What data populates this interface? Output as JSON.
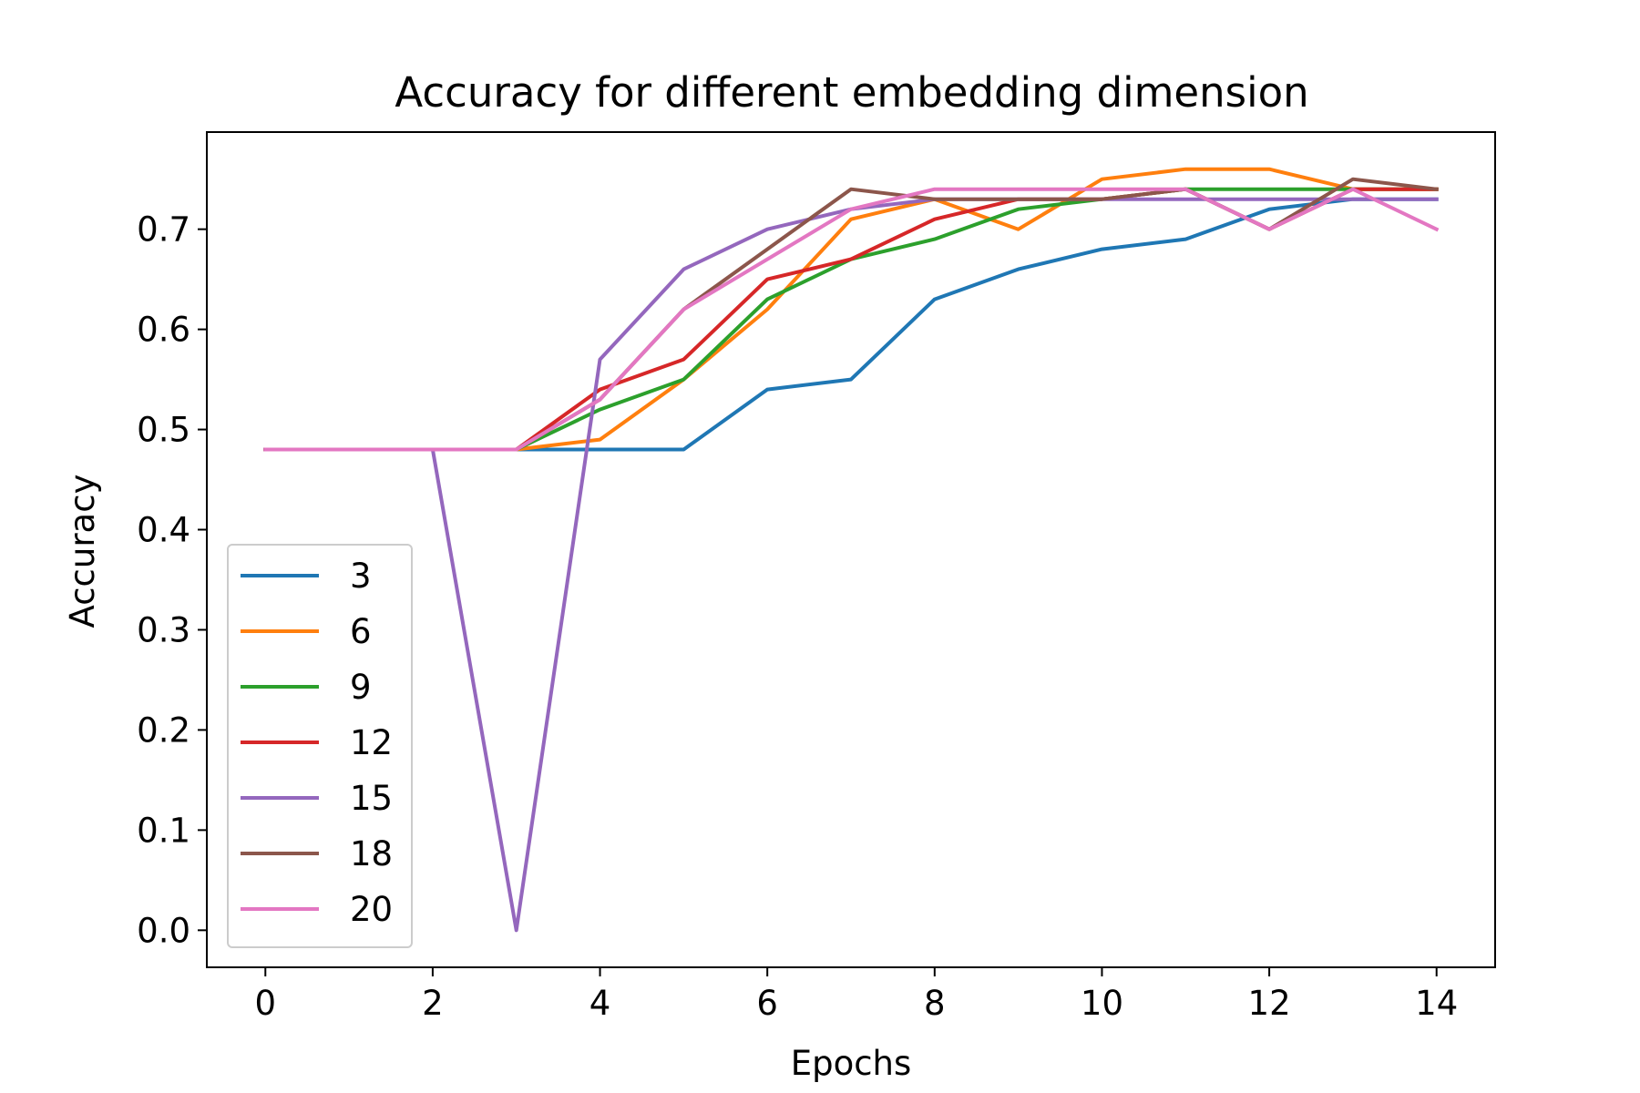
{
  "chart_data": {
    "type": "line",
    "title": "Accuracy for different embedding dimension",
    "xlabel": "Epochs",
    "ylabel": "Accuracy",
    "xlim": [
      -0.7,
      14.7
    ],
    "ylim": [
      -0.037,
      0.797
    ],
    "xticks": [
      "0",
      "2",
      "4",
      "6",
      "8",
      "10",
      "12",
      "14"
    ],
    "yticks": [
      "0.0",
      "0.1",
      "0.2",
      "0.3",
      "0.4",
      "0.5",
      "0.6",
      "0.7"
    ],
    "grid": false,
    "legend_position": "lower-left",
    "x": [
      0,
      1,
      2,
      3,
      4,
      5,
      6,
      7,
      8,
      9,
      10,
      11,
      12,
      13,
      14
    ],
    "series": [
      {
        "name": "3",
        "color": "#1f77b4",
        "values": [
          0.48,
          0.48,
          0.48,
          0.48,
          0.48,
          0.48,
          0.54,
          0.55,
          0.63,
          0.66,
          0.68,
          0.69,
          0.72,
          0.73,
          0.73
        ]
      },
      {
        "name": "6",
        "color": "#ff7f0e",
        "values": [
          0.48,
          0.48,
          0.48,
          0.48,
          0.49,
          0.55,
          0.62,
          0.71,
          0.73,
          0.7,
          0.75,
          0.76,
          0.76,
          0.74,
          0.74
        ]
      },
      {
        "name": "9",
        "color": "#2ca02c",
        "values": [
          0.48,
          0.48,
          0.48,
          0.48,
          0.52,
          0.55,
          0.63,
          0.67,
          0.69,
          0.72,
          0.73,
          0.74,
          0.74,
          0.74,
          0.74
        ]
      },
      {
        "name": "12",
        "color": "#d62728",
        "values": [
          0.48,
          0.48,
          0.48,
          0.48,
          0.54,
          0.57,
          0.65,
          0.67,
          0.71,
          0.73,
          0.73,
          0.74,
          0.7,
          0.74,
          0.74
        ]
      },
      {
        "name": "15",
        "color": "#9467bd",
        "values": [
          0.48,
          0.48,
          0.48,
          0.0,
          0.57,
          0.66,
          0.7,
          0.72,
          0.73,
          0.73,
          0.73,
          0.73,
          0.73,
          0.73,
          0.73
        ]
      },
      {
        "name": "18",
        "color": "#8c564b",
        "values": [
          0.48,
          0.48,
          0.48,
          0.48,
          0.53,
          0.62,
          0.68,
          0.74,
          0.73,
          0.73,
          0.73,
          0.74,
          0.7,
          0.75,
          0.74
        ]
      },
      {
        "name": "20",
        "color": "#e377c2",
        "values": [
          0.48,
          0.48,
          0.48,
          0.48,
          0.53,
          0.62,
          0.67,
          0.72,
          0.74,
          0.74,
          0.74,
          0.74,
          0.7,
          0.74,
          0.7
        ]
      }
    ]
  }
}
